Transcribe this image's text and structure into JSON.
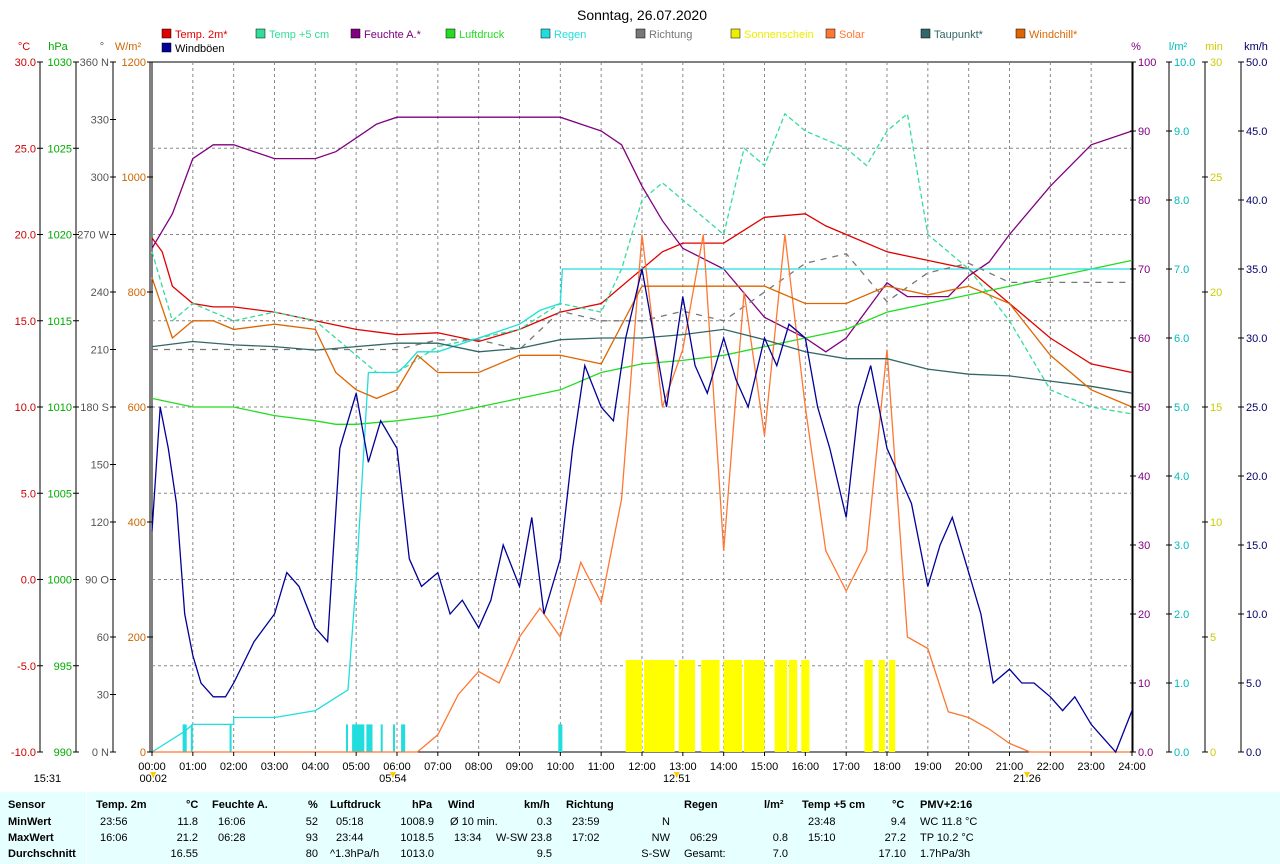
{
  "chart_data": {
    "type": "line",
    "title": "Sonntag, 26.07.2020",
    "x_ticks": [
      "00:00",
      "01:00",
      "02:00",
      "03:00",
      "04:00",
      "05:00",
      "06:00",
      "07:00",
      "08:00",
      "09:00",
      "10:00",
      "11:00",
      "12:00",
      "13:00",
      "14:00",
      "15:00",
      "16:00",
      "17:00",
      "18:00",
      "19:00",
      "20:00",
      "21:00",
      "22:00",
      "23:00",
      "24:00"
    ],
    "xlim_hours": [
      0,
      24
    ],
    "grid": true,
    "legend_placement": "top",
    "axes": {
      "temp": {
        "unit": "°C",
        "ticks": [
          "30.0",
          "25.0",
          "20.0",
          "15.0",
          "10.0",
          "5.0",
          "0.0",
          "-5.0",
          "-10.0"
        ],
        "ylim": [
          -10,
          30
        ],
        "color": "#cc0000"
      },
      "pressure": {
        "unit": "hPa",
        "ticks": [
          "1030",
          "1025",
          "1020",
          "1015",
          "1010",
          "1005",
          "1000",
          "995",
          "990"
        ],
        "ylim": [
          990,
          1030
        ],
        "color": "#00aa00"
      },
      "direction": {
        "unit": "°",
        "ticks": [
          "360 N",
          "330",
          "300",
          "270 W",
          "240",
          "210",
          "180 S",
          "150",
          "120",
          "90 O",
          "60",
          "30",
          "0 N"
        ],
        "ylim": [
          0,
          360
        ],
        "color": "#555555"
      },
      "solar": {
        "unit": "W/m²",
        "ticks": [
          "1200",
          "1000",
          "800",
          "600",
          "400",
          "200",
          "0"
        ],
        "ylim": [
          0,
          1200
        ],
        "color": "#cc6600"
      },
      "humidity": {
        "unit": "%",
        "ticks": [
          "100",
          "90",
          "80",
          "70",
          "60",
          "50",
          "40",
          "30",
          "20",
          "10",
          "0.0"
        ],
        "ylim": [
          0,
          100
        ],
        "color": "#800080"
      },
      "rain": {
        "unit": "l/m²",
        "ticks": [
          "10.0",
          "9.0",
          "8.0",
          "7.0",
          "6.0",
          "5.0",
          "4.0",
          "3.0",
          "2.0",
          "1.0",
          "0.0"
        ],
        "ylim": [
          0,
          10
        ],
        "color": "#00bbbb"
      },
      "sunshine": {
        "unit": "min",
        "ticks": [
          "30",
          "25",
          "20",
          "15",
          "10",
          "5",
          "0"
        ],
        "ylim": [
          0,
          30
        ],
        "color": "#cccc00"
      },
      "wind": {
        "unit": "km/h",
        "ticks": [
          "50.0",
          "45.0",
          "40.0",
          "35.0",
          "30.0",
          "25.0",
          "20.0",
          "15.0",
          "10.0",
          "5.0",
          "0.0"
        ],
        "ylim": [
          0,
          50
        ],
        "color": "#000066"
      }
    },
    "legend": [
      {
        "name": "Temp. 2m*",
        "color": "#e00000"
      },
      {
        "name": "Temp +5 cm",
        "color": "#33dd99"
      },
      {
        "name": "Feuchte A.*",
        "color": "#800080"
      },
      {
        "name": "Luftdruck",
        "color": "#22dd22"
      },
      {
        "name": "Regen",
        "color": "#22dddd"
      },
      {
        "name": "Richtung",
        "color": "#777777"
      },
      {
        "name": "Sonnenschein",
        "color": "#eeee00"
      },
      {
        "name": "Solar",
        "color": "#ff7733"
      },
      {
        "name": "Taupunkt*",
        "color": "#336666"
      },
      {
        "name": "Windchill*",
        "color": "#dd6600"
      },
      {
        "name": "Windböen",
        "color": "#000099"
      }
    ],
    "series": [
      {
        "name": "Temp. 2m*",
        "axis": "temp",
        "x": [
          0,
          0.25,
          0.5,
          1,
          1.5,
          2,
          3,
          4,
          5,
          6,
          7,
          8,
          9,
          10,
          11,
          12,
          12.5,
          13,
          14,
          15,
          16,
          16.5,
          17,
          18,
          19,
          20,
          20.5,
          21,
          22,
          23,
          24
        ],
        "y": [
          19.8,
          19,
          17,
          16,
          15.8,
          15.8,
          15.5,
          15,
          14.5,
          14.2,
          14.3,
          13.8,
          14.5,
          15.5,
          16,
          18,
          19,
          19.5,
          19.5,
          21,
          21.2,
          20.5,
          20,
          19,
          18.5,
          18,
          17,
          16,
          14,
          12.5,
          12
        ]
      },
      {
        "name": "Temp +5 cm",
        "axis": "temp",
        "x": [
          0,
          0.5,
          1,
          2,
          3,
          4,
          5,
          5.5,
          6,
          7,
          8,
          9,
          10,
          11,
          11.5,
          12,
          12.5,
          13,
          14,
          14.5,
          15,
          15.5,
          16,
          17,
          17.5,
          18,
          18.5,
          19,
          19.5,
          20,
          21,
          22,
          23,
          24
        ],
        "y": [
          19,
          15,
          16,
          15,
          15.5,
          15,
          13,
          12,
          12,
          13.5,
          14,
          14.5,
          16,
          15.5,
          18,
          22,
          23,
          22,
          20,
          25,
          24,
          27,
          26,
          25,
          24,
          26,
          27,
          20,
          19,
          18,
          15,
          11,
          10,
          9.6
        ]
      },
      {
        "name": "Feuchte A.*",
        "axis": "humidity",
        "x": [
          0,
          0.5,
          1,
          1.5,
          2,
          2.5,
          3,
          4,
          4.5,
          5,
          5.5,
          6,
          7,
          8,
          9,
          10,
          11,
          11.5,
          12,
          12.5,
          13,
          14,
          15,
          16,
          16.5,
          17,
          18,
          18.5,
          19,
          19.5,
          20,
          20.5,
          21,
          22,
          23,
          24
        ],
        "y": [
          73,
          78,
          86,
          88,
          88,
          87,
          86,
          86,
          87,
          89,
          91,
          92,
          92,
          92,
          92,
          92,
          90,
          88,
          82,
          77,
          73,
          70,
          63,
          60,
          58,
          60,
          68,
          66,
          66,
          66,
          69,
          71,
          75,
          82,
          88,
          90
        ]
      },
      {
        "name": "Luftdruck",
        "axis": "pressure",
        "x": [
          0,
          1,
          2,
          3,
          4,
          4.5,
          5,
          6,
          7,
          8,
          9,
          10,
          11,
          12,
          13,
          14,
          15,
          16,
          17,
          18,
          19,
          20,
          21,
          22,
          23,
          24
        ],
        "y": [
          1010.5,
          1010,
          1010,
          1009.5,
          1009.2,
          1009,
          1009,
          1009.2,
          1009.5,
          1010,
          1010.5,
          1011,
          1012,
          1012.5,
          1012.7,
          1013,
          1013.5,
          1014,
          1014.5,
          1015.5,
          1016,
          1016.5,
          1017,
          1017.5,
          1018,
          1018.5
        ]
      },
      {
        "name": "Regen",
        "axis": "rain",
        "x": [
          0,
          0.8,
          1,
          2,
          2,
          3,
          4,
          4.8,
          5,
          5.3,
          6,
          6.2,
          6.5,
          7,
          7.5,
          8,
          9,
          9.5,
          10,
          10.05,
          10.1,
          11,
          12,
          13,
          14,
          15,
          16,
          17,
          18,
          19,
          20,
          21,
          22,
          23,
          24
        ],
        "y": [
          0,
          0.3,
          0.4,
          0.4,
          0.5,
          0.5,
          0.6,
          0.9,
          2.5,
          5.5,
          5.5,
          5.6,
          5.8,
          5.8,
          5.9,
          6,
          6.2,
          6.4,
          6.5,
          7,
          7,
          7,
          7,
          7,
          7,
          7,
          7,
          7,
          7,
          7,
          7,
          7,
          7,
          7,
          7
        ]
      },
      {
        "name": "Richtung",
        "axis": "direction",
        "x": [
          0,
          1,
          2,
          3,
          4,
          5,
          6,
          7,
          8,
          9,
          10,
          11,
          12,
          13,
          14,
          15,
          16,
          17,
          18,
          19,
          20,
          21,
          22,
          23,
          24
        ],
        "y": [
          210,
          210,
          210,
          210,
          210,
          210,
          210,
          215,
          215,
          210,
          230,
          225,
          225,
          230,
          225,
          240,
          255,
          260,
          235,
          250,
          255,
          245,
          245,
          245,
          245
        ]
      },
      {
        "name": "Solar",
        "axis": "solar",
        "x": [
          0,
          6.5,
          7,
          7.5,
          8,
          8.5,
          9,
          9.5,
          10,
          10.5,
          11,
          11.5,
          12,
          12.5,
          13,
          13.5,
          14,
          14.5,
          15,
          15.5,
          16,
          16.5,
          17,
          17.5,
          18,
          18.5,
          19,
          19.5,
          20,
          20.5,
          21,
          21.5,
          24
        ],
        "y": [
          0,
          0,
          30,
          100,
          140,
          120,
          200,
          250,
          200,
          330,
          260,
          440,
          900,
          600,
          700,
          900,
          350,
          800,
          550,
          900,
          600,
          350,
          280,
          350,
          700,
          200,
          180,
          70,
          60,
          40,
          15,
          0,
          0
        ]
      },
      {
        "name": "Taupunkt*",
        "axis": "temp",
        "x": [
          0,
          1,
          2,
          3,
          4,
          5,
          6,
          7,
          8,
          9,
          10,
          11,
          12,
          13,
          14,
          15,
          16,
          17,
          18,
          19,
          20,
          21,
          22,
          23,
          24
        ],
        "y": [
          13.5,
          13.8,
          13.6,
          13.5,
          13.3,
          13.5,
          13.7,
          13.7,
          13.2,
          13.4,
          13.9,
          14,
          14,
          14.2,
          14.5,
          13.9,
          13.2,
          12.8,
          12.8,
          12.2,
          11.9,
          11.8,
          11.5,
          11.2,
          10.8
        ]
      },
      {
        "name": "Windchill*",
        "axis": "temp",
        "x": [
          0,
          0.5,
          1,
          1.5,
          2,
          3,
          4,
          4.5,
          5,
          5.5,
          6,
          6.5,
          7,
          8,
          9,
          10,
          11,
          12,
          12.5,
          13,
          14,
          15,
          16,
          17,
          18,
          19,
          20,
          21,
          22,
          23,
          24
        ],
        "y": [
          17.5,
          14,
          15,
          15,
          14.5,
          14.8,
          14.5,
          12,
          11,
          10.5,
          11,
          13,
          12,
          12,
          13,
          13,
          12.5,
          17,
          17,
          17,
          17,
          17,
          16,
          16,
          17,
          16.5,
          17,
          16,
          13,
          11,
          10
        ]
      },
      {
        "name": "Windböen",
        "axis": "wind",
        "x": [
          0,
          0.2,
          0.4,
          0.6,
          0.8,
          1,
          1.2,
          1.5,
          1.8,
          2,
          2.5,
          3,
          3.3,
          3.6,
          4,
          4.3,
          4.6,
          5,
          5.3,
          5.6,
          6,
          6.3,
          6.6,
          7,
          7.3,
          7.6,
          8,
          8.3,
          8.6,
          9,
          9.3,
          9.6,
          10,
          10.3,
          10.6,
          11,
          11.3,
          11.6,
          12,
          12.3,
          12.6,
          13,
          13.3,
          13.6,
          14,
          14.3,
          14.6,
          15,
          15.3,
          15.6,
          16,
          16.3,
          16.6,
          17,
          17.3,
          17.6,
          18,
          18.3,
          18.6,
          19,
          19.3,
          19.6,
          20,
          20.3,
          20.6,
          21,
          21.3,
          21.6,
          22,
          22.3,
          22.6,
          23,
          23.3,
          23.6,
          24
        ],
        "y": [
          16,
          25,
          22,
          18,
          10,
          7,
          5,
          4,
          4,
          5,
          8,
          10,
          13,
          12,
          9,
          8,
          22,
          26,
          21,
          24,
          22,
          14,
          12,
          13,
          10,
          11,
          9,
          11,
          15,
          12,
          17,
          10,
          14,
          22,
          28,
          25,
          24,
          30,
          35,
          30,
          25,
          33,
          28,
          26,
          30,
          27,
          25,
          30,
          28,
          31,
          30,
          25,
          22,
          17,
          25,
          28,
          22,
          20,
          18,
          12,
          15,
          17,
          13,
          10,
          5,
          6,
          5,
          5,
          4,
          3,
          4,
          2,
          1,
          0,
          3
        ]
      }
    ],
    "sunshine_bars_hours": [
      [
        11.6,
        12.0
      ],
      [
        12.05,
        12.8
      ],
      [
        12.9,
        13.3
      ],
      [
        13.45,
        13.9
      ],
      [
        14.0,
        14.45
      ],
      [
        14.5,
        15.0
      ],
      [
        15.25,
        15.55
      ],
      [
        15.6,
        15.8
      ],
      [
        15.9,
        16.1
      ],
      [
        17.45,
        17.65
      ],
      [
        17.8,
        17.95
      ],
      [
        18.05,
        18.2
      ]
    ],
    "rain_bars_hours": [
      [
        0.75,
        0.85
      ],
      [
        0.95,
        1.0
      ],
      [
        1.9,
        1.95
      ],
      [
        4.75,
        4.8
      ],
      [
        4.9,
        5.2
      ],
      [
        5.25,
        5.4
      ],
      [
        5.6,
        5.65
      ],
      [
        5.9,
        5.95
      ],
      [
        6.1,
        6.2
      ],
      [
        9.95,
        10.05
      ]
    ],
    "markers": [
      {
        "label": "15:31",
        "hour": -2.9
      },
      {
        "label": "00:02",
        "hour": 0.03
      },
      {
        "label": "05:54",
        "hour": 5.9
      },
      {
        "label": "12:51",
        "hour": 12.85
      },
      {
        "label": "21:26",
        "hour": 21.43
      }
    ]
  },
  "stats": {
    "sensor": {
      "header": "Sensor",
      "labels": [
        "MinWert",
        "MaxWert",
        "Durchschnitt"
      ]
    },
    "temp2m": {
      "header": "Temp. 2m",
      "unit": "°C",
      "rows": [
        [
          "23:56",
          "11.8"
        ],
        [
          "16:06",
          "21.2"
        ],
        [
          "",
          "16.55"
        ]
      ]
    },
    "feuchte": {
      "header": "Feuchte A.",
      "unit": "%",
      "rows": [
        [
          "16:06",
          "52"
        ],
        [
          "06:28",
          "93"
        ],
        [
          "",
          "80"
        ]
      ]
    },
    "luftdruck": {
      "header": "Luftdruck",
      "unit": "hPa",
      "rows": [
        [
          "05:18",
          "1008.9"
        ],
        [
          "23:44",
          "1018.5"
        ],
        [
          "^1.3hPa/h",
          "1013.0"
        ]
      ]
    },
    "wind": {
      "header": "Wind",
      "unit": "km/h",
      "rows": [
        [
          "Ø 10 min.",
          "",
          "0.3"
        ],
        [
          "13:34",
          "W-SW",
          "23.8"
        ],
        [
          "",
          "",
          "9.5"
        ]
      ]
    },
    "richtung": {
      "header": "Richtung",
      "rows": [
        [
          "23:59",
          "N"
        ],
        [
          "17:02",
          "NW"
        ],
        [
          "",
          "S-SW"
        ]
      ]
    },
    "regen": {
      "header": "Regen",
      "unit": "l/m²",
      "rows": [
        [
          "",
          ""
        ],
        [
          "06:29",
          "0.8"
        ],
        [
          "Gesamt:",
          "7.0"
        ]
      ]
    },
    "temp5cm": {
      "header": "Temp +5 cm",
      "unit": "°C",
      "rows": [
        [
          "23:48",
          "9.4"
        ],
        [
          "15:10",
          "27.2"
        ],
        [
          "",
          "17.10"
        ]
      ]
    },
    "pmv": {
      "header": "PMV+2:16",
      "rows": [
        "WC 11.8 °C",
        "TP 10.2 °C",
        "1.7hPa/3h"
      ]
    }
  }
}
